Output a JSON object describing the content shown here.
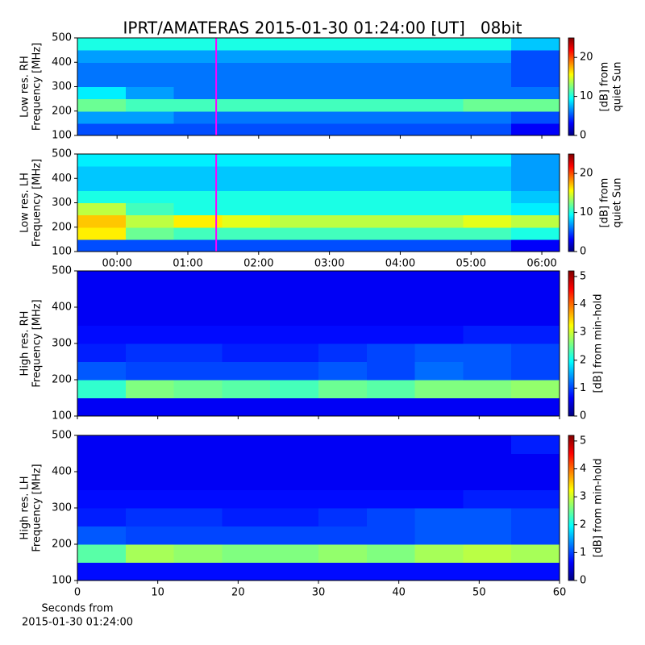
{
  "chart_data": [
    {
      "type": "spectrogram",
      "title": "IPRT/AMATERAS 2015-01-30 01:24:00 [UT]   08bit",
      "ylabel": [
        "Low res. RH",
        "Frequency [MHz]"
      ],
      "clabel": [
        "[dB] from",
        "quiet Sun"
      ],
      "colormap": "jet",
      "xlim": [
        -0.56,
        6.25
      ],
      "xticks": [
        0,
        1,
        2,
        3,
        4,
        5,
        6
      ],
      "xtick_labels": false,
      "ylim": [
        100,
        500
      ],
      "yticks": [
        100,
        200,
        300,
        400,
        500
      ],
      "clim": [
        0,
        25
      ],
      "cticks": [
        0,
        10,
        20
      ],
      "vline": 1.4,
      "vline_color": "#ff00ff",
      "z": [
        [
          5,
          5,
          5,
          5,
          5,
          5,
          5,
          5,
          5,
          3
        ],
        [
          7,
          7,
          6,
          6,
          6,
          6,
          6,
          6,
          6,
          5
        ],
        [
          12,
          11,
          11,
          11,
          11,
          11,
          11,
          11,
          12,
          12
        ],
        [
          9,
          7,
          6,
          6,
          6,
          6,
          6,
          6,
          6,
          6
        ],
        [
          6,
          6,
          6,
          6,
          6,
          6,
          6,
          6,
          6,
          5
        ],
        [
          6,
          6,
          6,
          6,
          6,
          6,
          6,
          6,
          6,
          5
        ],
        [
          7,
          7,
          7,
          7,
          7,
          7,
          7,
          7,
          7,
          5
        ],
        [
          10,
          10,
          10,
          10,
          10,
          10,
          10,
          10,
          10,
          8
        ]
      ]
    },
    {
      "type": "spectrogram",
      "ylabel": [
        "Low res. LH",
        "Frequency [MHz]"
      ],
      "clabel": [
        "[dB] from",
        "quiet Sun"
      ],
      "colormap": "jet",
      "xlim": [
        -0.56,
        6.25
      ],
      "xticks": [
        {
          "value": 0,
          "label": "00:00"
        },
        {
          "value": 1,
          "label": "01:00"
        },
        {
          "value": 2,
          "label": "02:00"
        },
        {
          "value": 3,
          "label": "03:00"
        },
        {
          "value": 4,
          "label": "04:00"
        },
        {
          "value": 5,
          "label": "05:00"
        },
        {
          "value": 6,
          "label": "06:00"
        }
      ],
      "xtick_labels": true,
      "ylim": [
        100,
        500
      ],
      "yticks": [
        100,
        200,
        300,
        400,
        500
      ],
      "clim": [
        0,
        25
      ],
      "cticks": [
        0,
        10,
        20
      ],
      "vline": 1.4,
      "vline_color": "#ff00ff",
      "z": [
        [
          5,
          5,
          5,
          5,
          5,
          5,
          5,
          5,
          5,
          3
        ],
        [
          16,
          12,
          11,
          11,
          11,
          11,
          11,
          11,
          11,
          10
        ],
        [
          17,
          14,
          16,
          15,
          14,
          14,
          14,
          14,
          15,
          14
        ],
        [
          14,
          11,
          10,
          10,
          10,
          10,
          10,
          10,
          10,
          9
        ],
        [
          10,
          10,
          10,
          10,
          10,
          10,
          10,
          10,
          10,
          8
        ],
        [
          8,
          8,
          8,
          8,
          8,
          8,
          8,
          8,
          8,
          7
        ],
        [
          8,
          8,
          8,
          8,
          8,
          8,
          8,
          8,
          8,
          7
        ],
        [
          9,
          9,
          9,
          9,
          9,
          9,
          9,
          9,
          9,
          7
        ]
      ]
    },
    {
      "type": "spectrogram",
      "ylabel": [
        "High res. RH",
        "Frequency [MHz]"
      ],
      "clabel": [
        "[dB] from min-hold"
      ],
      "colormap": "jet",
      "xlim": [
        0,
        60
      ],
      "xticks": [
        0,
        10,
        20,
        30,
        40,
        50,
        60
      ],
      "xtick_labels": false,
      "ylim": [
        100,
        500
      ],
      "yticks": [
        100,
        200,
        300,
        400,
        500
      ],
      "clim": [
        0,
        5.2
      ],
      "cticks": [
        0,
        1,
        2,
        3,
        4,
        5
      ],
      "z": [
        [
          0.6,
          0.6,
          0.6,
          0.6,
          0.6,
          0.6,
          0.6,
          0.6,
          0.6,
          0.6
        ],
        [
          2.2,
          2.6,
          2.5,
          2.4,
          2.3,
          2.5,
          2.4,
          2.6,
          2.6,
          2.7
        ],
        [
          1.1,
          1.0,
          1.0,
          1.0,
          1.0,
          1.1,
          1.0,
          1.2,
          1.1,
          1.0
        ],
        [
          0.8,
          0.9,
          0.9,
          0.8,
          0.8,
          0.9,
          1.0,
          1.1,
          1.1,
          1.0
        ],
        [
          0.7,
          0.7,
          0.7,
          0.7,
          0.7,
          0.7,
          0.7,
          0.7,
          0.8,
          0.8
        ],
        [
          0.6,
          0.6,
          0.6,
          0.6,
          0.6,
          0.6,
          0.6,
          0.6,
          0.6,
          0.6
        ],
        [
          0.6,
          0.6,
          0.6,
          0.6,
          0.6,
          0.6,
          0.6,
          0.6,
          0.6,
          0.6
        ],
        [
          0.6,
          0.6,
          0.6,
          0.6,
          0.6,
          0.6,
          0.6,
          0.6,
          0.6,
          0.6
        ]
      ]
    },
    {
      "type": "spectrogram",
      "ylabel": [
        "High res. LH",
        "Frequency [MHz]"
      ],
      "clabel": [
        "[dB] from min-hold"
      ],
      "xlabel": [
        "Seconds from",
        "2015-01-30 01:24:00"
      ],
      "colormap": "jet",
      "xlim": [
        0,
        60
      ],
      "xticks": [
        0,
        10,
        20,
        30,
        40,
        50,
        60
      ],
      "xtick_labels": true,
      "ylim": [
        100,
        500
      ],
      "yticks": [
        100,
        200,
        300,
        400,
        500
      ],
      "clim": [
        0,
        5.2
      ],
      "cticks": [
        0,
        1,
        2,
        3,
        4,
        5
      ],
      "z": [
        [
          0.7,
          0.7,
          0.7,
          0.7,
          0.7,
          0.7,
          0.7,
          0.7,
          0.7,
          0.7
        ],
        [
          2.4,
          2.8,
          2.7,
          2.6,
          2.6,
          2.7,
          2.6,
          2.8,
          2.9,
          2.8
        ],
        [
          1.1,
          1.0,
          1.0,
          1.0,
          1.0,
          1.0,
          1.0,
          1.1,
          1.1,
          1.0
        ],
        [
          0.8,
          0.9,
          0.9,
          0.8,
          0.8,
          0.9,
          1.0,
          1.1,
          1.1,
          1.0
        ],
        [
          0.7,
          0.7,
          0.7,
          0.7,
          0.7,
          0.7,
          0.7,
          0.7,
          0.8,
          0.8
        ],
        [
          0.6,
          0.6,
          0.6,
          0.6,
          0.6,
          0.6,
          0.6,
          0.6,
          0.6,
          0.6
        ],
        [
          0.6,
          0.6,
          0.6,
          0.6,
          0.6,
          0.6,
          0.6,
          0.6,
          0.6,
          0.6
        ],
        [
          0.6,
          0.6,
          0.6,
          0.6,
          0.6,
          0.6,
          0.6,
          0.6,
          0.6,
          0.8
        ]
      ]
    }
  ]
}
